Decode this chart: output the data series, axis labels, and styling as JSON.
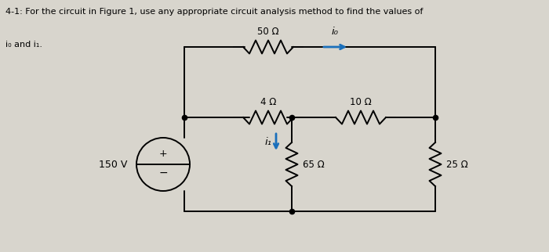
{
  "title_line1": "4-1: For the circuit in Figure 1, use any appropriate circuit analysis method to find the values of",
  "title_line2": "i₀ and i₁.",
  "bg_color": "#d8d5cd",
  "line_color": "#000000",
  "arrow_color": "#1a6fbb",
  "components": {
    "V_150": {
      "label": "150 V"
    },
    "R_50": {
      "label": "50 Ω"
    },
    "R_4": {
      "label": "4 Ω"
    },
    "R_10": {
      "label": "10 Ω"
    },
    "R_65": {
      "label": "65 Ω"
    },
    "R_25": {
      "label": "25 Ω"
    }
  },
  "io_label": "i₀",
  "i1_label": "i₁",
  "figsize": [
    7.0,
    3.22
  ],
  "dpi": 100,
  "xlim": [
    0,
    7
  ],
  "ylim": [
    0,
    3.22
  ]
}
